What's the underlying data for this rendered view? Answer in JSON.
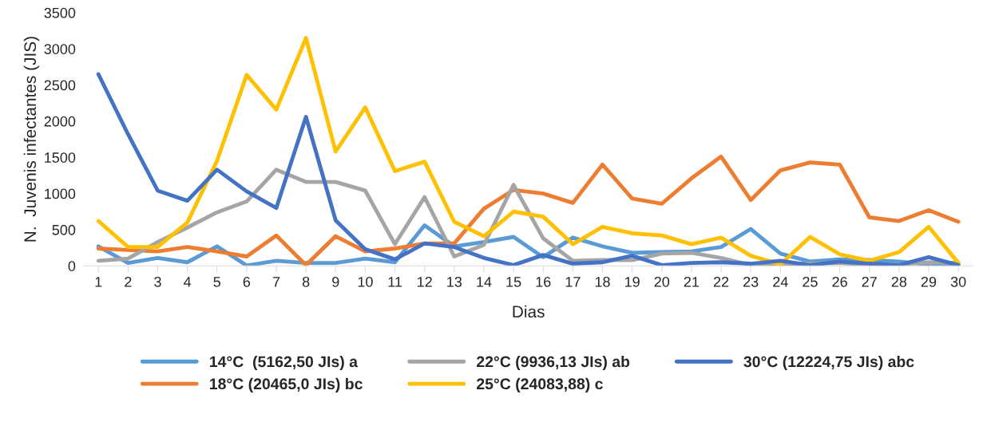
{
  "chart_data": {
    "type": "line",
    "xlabel": "Dias",
    "ylabel": "N.  Juvenis infectantes (JIS)",
    "categories": [
      "1",
      "2",
      "3",
      "4",
      "5",
      "6",
      "7",
      "8",
      "9",
      "10",
      "11",
      "12",
      "13",
      "14",
      "15",
      "16",
      "17",
      "18",
      "19",
      "20",
      "21",
      "22",
      "23",
      "24",
      "25",
      "26",
      "27",
      "28",
      "29",
      "30"
    ],
    "ylim": [
      0,
      3500
    ],
    "yticks": [
      0,
      500,
      1000,
      1500,
      2000,
      2500,
      3000,
      3500
    ],
    "grid": false,
    "legend": "bottom",
    "marker": "none",
    "line_style": "solid",
    "series": [
      {
        "name": "14°C  (5162,50 JIs) a",
        "color": "#5b9bd5",
        "values": [
          270,
          40,
          110,
          50,
          270,
          5,
          70,
          40,
          40,
          100,
          50,
          560,
          270,
          330,
          400,
          120,
          390,
          270,
          180,
          190,
          200,
          260,
          510,
          170,
          60,
          90,
          80,
          60,
          20,
          20
        ]
      },
      {
        "name": "18°C (20465,0 JIs) bc",
        "color": "#ed7d31",
        "values": [
          240,
          220,
          200,
          260,
          200,
          130,
          420,
          10,
          410,
          200,
          240,
          310,
          310,
          790,
          1050,
          1000,
          870,
          1400,
          930,
          860,
          1210,
          1510,
          910,
          1320,
          1430,
          1400,
          670,
          620,
          770,
          610
        ]
      },
      {
        "name": "22°C (9936,13 JIs) ab",
        "color": "#a5a5a5",
        "values": [
          70,
          100,
          330,
          530,
          740,
          890,
          1330,
          1160,
          1160,
          1040,
          300,
          950,
          130,
          290,
          1120,
          380,
          70,
          80,
          80,
          170,
          180,
          110,
          10,
          30,
          30,
          40,
          10,
          20,
          50,
          40
        ]
      },
      {
        "name": "25°C (24083,88) c",
        "color": "#ffc000",
        "values": [
          620,
          260,
          260,
          600,
          1450,
          2640,
          2160,
          3150,
          1580,
          2190,
          1310,
          1440,
          610,
          410,
          750,
          680,
          300,
          540,
          450,
          420,
          300,
          390,
          140,
          20,
          400,
          160,
          70,
          190,
          540,
          40
        ]
      },
      {
        "name": "30°C (12224,75 JIs) abc",
        "color": "#4472c4",
        "values": [
          2650,
          1820,
          1040,
          900,
          1330,
          1030,
          800,
          2060,
          630,
          230,
          90,
          310,
          260,
          110,
          10,
          150,
          30,
          50,
          140,
          10,
          40,
          50,
          30,
          70,
          10,
          60,
          30,
          10,
          120,
          10
        ]
      }
    ]
  }
}
